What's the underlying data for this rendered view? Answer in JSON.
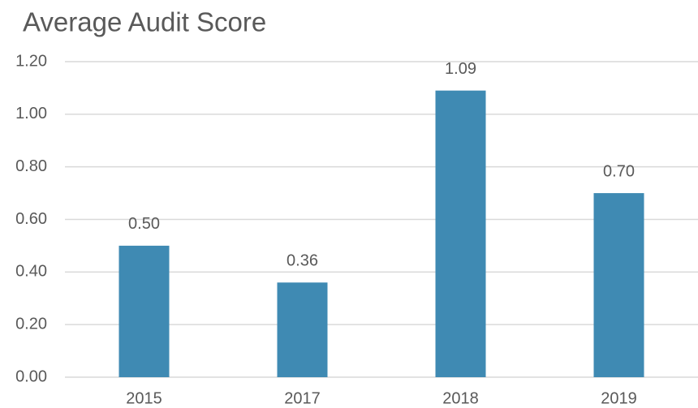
{
  "chart_data": {
    "type": "bar",
    "title": "Average Audit Score",
    "categories": [
      "2015",
      "2017",
      "2018",
      "2019"
    ],
    "values": [
      0.5,
      0.36,
      1.09,
      0.7
    ],
    "value_labels": [
      "0.50",
      "0.36",
      "1.09",
      "0.70"
    ],
    "color": "#3f8ab3",
    "ylim": [
      0,
      1.2
    ],
    "yticks": [
      {
        "value": 0,
        "label": "0.00"
      },
      {
        "value": 0.2,
        "label": "0.20"
      },
      {
        "value": 0.4,
        "label": "0.40"
      },
      {
        "value": 0.6,
        "label": "0.60"
      },
      {
        "value": 0.8,
        "label": "0.80"
      },
      {
        "value": 1,
        "label": "1.00"
      },
      {
        "value": 1.2,
        "label": "1.20"
      }
    ],
    "grid": true
  }
}
